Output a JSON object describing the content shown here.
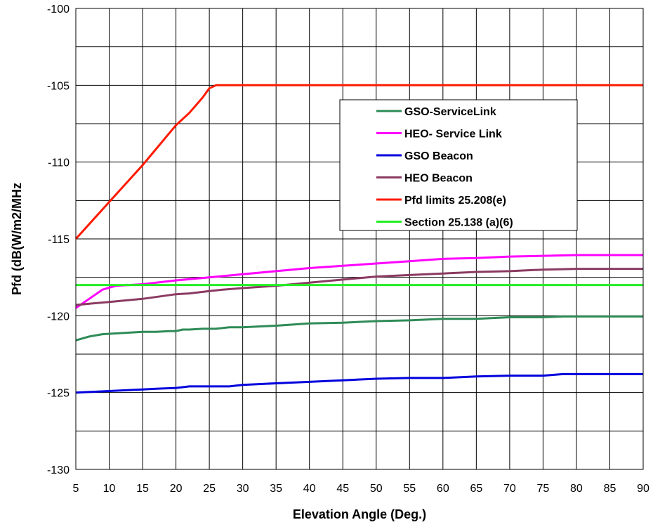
{
  "chart_data": {
    "type": "line",
    "title": "",
    "xlabel": "Elevation Angle (Deg.)",
    "ylabel": "Pfd  (dB(W/m2/MHz",
    "xlim": [
      5,
      90
    ],
    "ylim": [
      -130,
      -100
    ],
    "xticks": [
      5,
      10,
      15,
      20,
      25,
      30,
      35,
      40,
      45,
      50,
      55,
      60,
      65,
      70,
      75,
      80,
      85,
      90
    ],
    "yticks": [
      -130,
      -125,
      -120,
      -115,
      -110,
      -105,
      -100
    ],
    "ygrid_minor_step": 2.5,
    "grid": true,
    "legend_position": "upper-center-right",
    "series": [
      {
        "name": "GSO-ServiceLink",
        "color": "#2e8b57",
        "x": [
          5,
          7,
          9,
          11,
          13,
          15,
          17,
          19,
          20,
          21,
          22,
          24,
          26,
          28,
          30,
          35,
          40,
          45,
          50,
          55,
          60,
          65,
          70,
          75,
          78,
          80,
          85,
          90
        ],
        "y": [
          -121.6,
          -121.35,
          -121.2,
          -121.15,
          -121.1,
          -121.05,
          -121.05,
          -121.0,
          -121.0,
          -120.9,
          -120.9,
          -120.85,
          -120.85,
          -120.75,
          -120.75,
          -120.65,
          -120.5,
          -120.45,
          -120.35,
          -120.3,
          -120.2,
          -120.2,
          -120.1,
          -120.1,
          -120.05,
          -120.05,
          -120.05,
          -120.05
        ]
      },
      {
        "name": "HEO- Service Link",
        "color": "#ff00ff",
        "x": [
          5,
          7,
          9,
          11,
          13,
          15,
          20,
          25,
          30,
          35,
          40,
          45,
          50,
          55,
          60,
          65,
          70,
          75,
          80,
          85,
          90
        ],
        "y": [
          -119.5,
          -118.9,
          -118.3,
          -118.05,
          -118.0,
          -117.95,
          -117.7,
          -117.5,
          -117.3,
          -117.1,
          -116.9,
          -116.75,
          -116.6,
          -116.45,
          -116.3,
          -116.25,
          -116.15,
          -116.1,
          -116.05,
          -116.05,
          -116.05
        ]
      },
      {
        "name": "GSO Beacon",
        "color": "#0000dd",
        "x": [
          5,
          10,
          15,
          17,
          20,
          22,
          25,
          28,
          30,
          35,
          40,
          45,
          50,
          55,
          60,
          65,
          70,
          75,
          78,
          80,
          85,
          90
        ],
        "y": [
          -125.0,
          -124.9,
          -124.8,
          -124.75,
          -124.7,
          -124.6,
          -124.6,
          -124.6,
          -124.5,
          -124.4,
          -124.3,
          -124.2,
          -124.1,
          -124.05,
          -124.05,
          -123.95,
          -123.9,
          -123.9,
          -123.8,
          -123.8,
          -123.8,
          -123.8
        ]
      },
      {
        "name": "HEO Beacon",
        "color": "#8b3a62",
        "x": [
          5,
          10,
          15,
          20,
          22,
          25,
          27,
          30,
          35,
          40,
          45,
          50,
          55,
          60,
          65,
          70,
          75,
          80,
          85,
          90
        ],
        "y": [
          -119.3,
          -119.1,
          -118.9,
          -118.6,
          -118.55,
          -118.4,
          -118.3,
          -118.2,
          -118.05,
          -117.85,
          -117.65,
          -117.45,
          -117.35,
          -117.25,
          -117.15,
          -117.1,
          -117.0,
          -116.95,
          -116.95,
          -116.95
        ]
      },
      {
        "name": "Pfd limits 25.208(e)",
        "color": "#ff1a00",
        "x": [
          5,
          10,
          15,
          20,
          22,
          24,
          25,
          26,
          27,
          30,
          40,
          50,
          60,
          70,
          80,
          90
        ],
        "y": [
          -115.0,
          -112.6,
          -110.2,
          -107.6,
          -106.8,
          -105.8,
          -105.2,
          -105.0,
          -105.0,
          -105.0,
          -105.0,
          -105.0,
          -105.0,
          -105.0,
          -105.0,
          -105.0
        ]
      },
      {
        "name": "Section 25.138 (a)(6)",
        "color": "#22ee22",
        "x": [
          5,
          90
        ],
        "y": [
          -118.0,
          -118.0
        ]
      }
    ]
  }
}
